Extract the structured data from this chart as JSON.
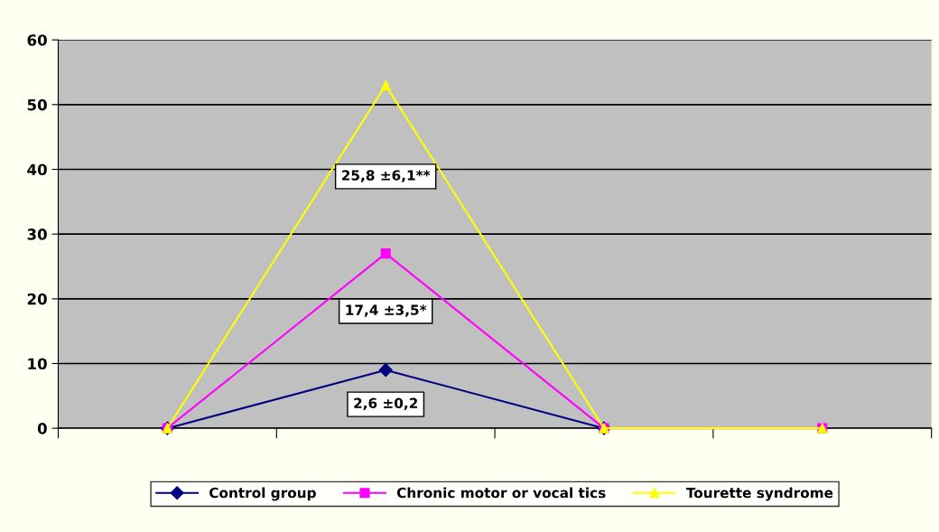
{
  "chart_data": {
    "type": "line",
    "categories": [
      null,
      null,
      null,
      null
    ],
    "series": [
      {
        "name": "Control group",
        "color": "#000080",
        "marker": "diamond",
        "values": [
          0,
          9,
          0,
          null
        ]
      },
      {
        "name": "Chronic motor or vocal tics",
        "color": "#ff00ff",
        "marker": "square",
        "values": [
          0,
          27,
          0,
          0
        ]
      },
      {
        "name": "Tourette syndrome",
        "color": "#ffff00",
        "marker": "triangle",
        "values": [
          0,
          53,
          0,
          0
        ]
      }
    ],
    "annotations": [
      "25,8 ±6,1**",
      "17,4 ±3,5*",
      "2,6 ±0,2"
    ],
    "ylim": [
      0,
      60
    ],
    "yticks": [
      0,
      10,
      20,
      30,
      40,
      50,
      60
    ],
    "grid": "y",
    "legend": "bottom",
    "line_style": "solid"
  }
}
